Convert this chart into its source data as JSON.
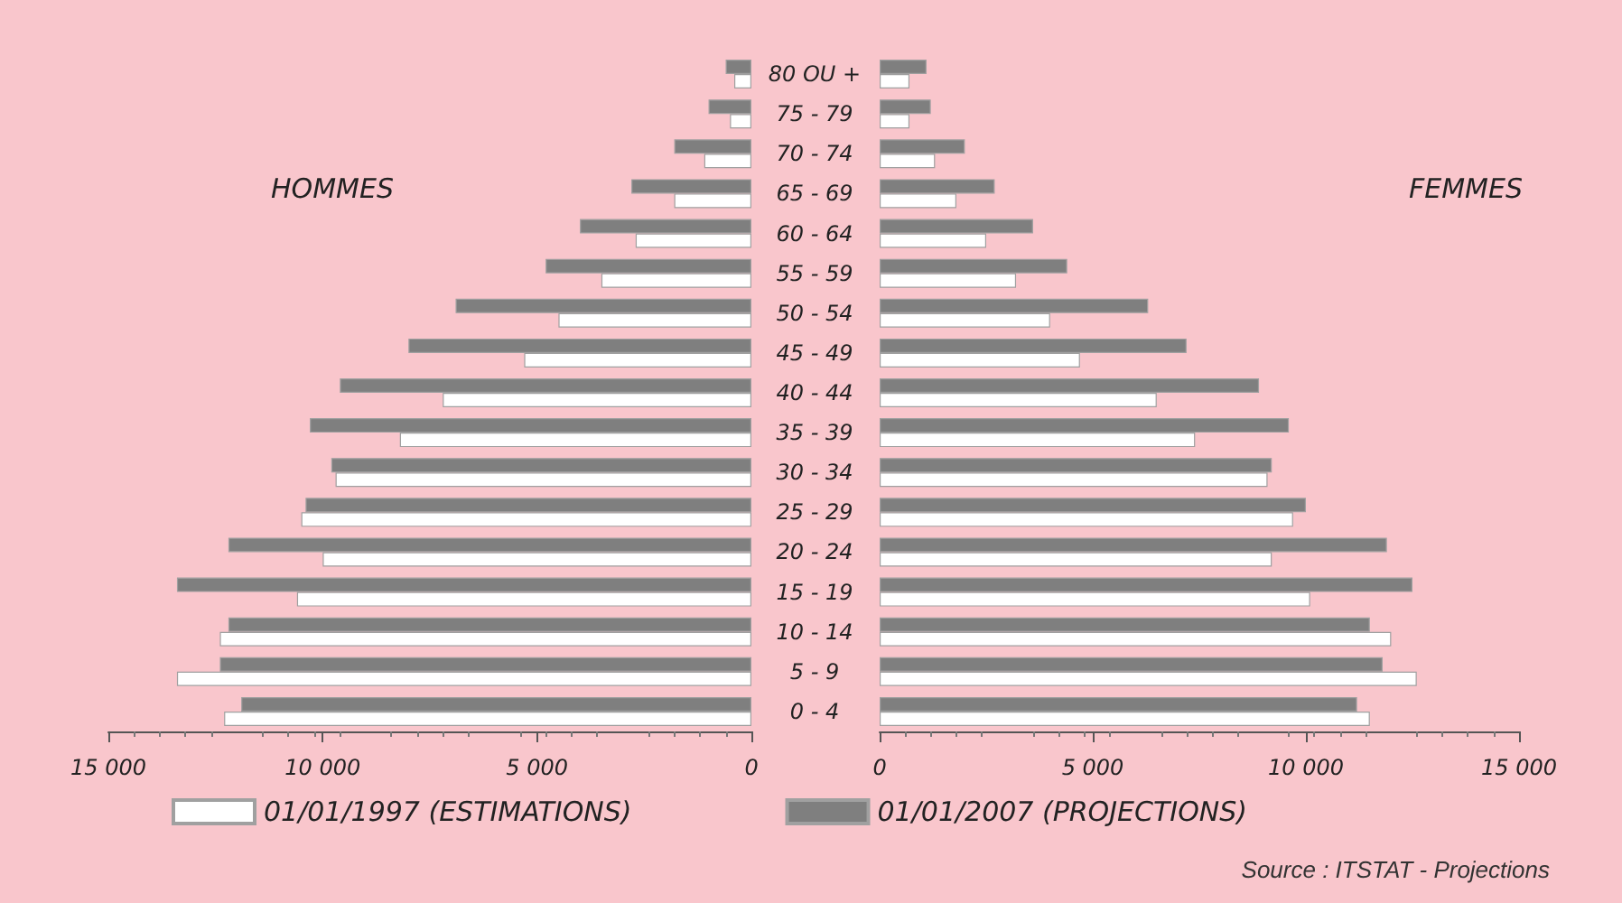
{
  "chart_data": [
    {
      "type": "bar",
      "orientation": "horizontal",
      "title": "HOMMES",
      "categories": [
        "80 OU +",
        "75 - 79",
        "70 - 74",
        "65 - 69",
        "60 - 64",
        "55 - 59",
        "50 - 54",
        "45 - 49",
        "40 - 44",
        "35 - 39",
        "30 - 34",
        "25 - 29",
        "20 - 24",
        "15 - 19",
        "10 - 14",
        "5 - 9",
        "0 - 4"
      ],
      "series": [
        {
          "name": "01/01/1997 (ESTIMATIONS)",
          "color": "#ffffff",
          "values": [
            400,
            500,
            1100,
            1800,
            2700,
            3500,
            4500,
            5300,
            7200,
            8200,
            9700,
            10500,
            10000,
            10600,
            12400,
            13400,
            12300
          ]
        },
        {
          "name": "01/01/2007 (PROJECTIONS)",
          "color": "#7f7f7f",
          "values": [
            600,
            1000,
            1800,
            2800,
            4000,
            4800,
            6900,
            8000,
            9600,
            10300,
            9800,
            10400,
            12200,
            13400,
            12200,
            12400,
            11900
          ]
        }
      ],
      "xlim": [
        15000,
        0
      ],
      "xticks": [
        {
          "value": 15000,
          "label": "15 000"
        },
        {
          "value": 10000,
          "label": "10 000"
        },
        {
          "value": 5000,
          "label": "5 000"
        },
        0
      ],
      "tick_labels": "x",
      "legend": "bottom",
      "grid": false
    },
    {
      "type": "bar",
      "orientation": "horizontal",
      "title": "FEMMES",
      "categories": [
        "80 OU +",
        "75 - 79",
        "70 - 74",
        "65 - 69",
        "60 - 64",
        "55 - 59",
        "50 - 54",
        "45 - 49",
        "40 - 44",
        "35 - 39",
        "30 - 34",
        "25 - 29",
        "20 - 24",
        "15 - 19",
        "10 - 14",
        "5 - 9",
        "0 - 4"
      ],
      "series": [
        {
          "color": "#ffffff",
          "values": [
            700,
            700,
            1300,
            1800,
            2500,
            3200,
            4000,
            4700,
            6500,
            7400,
            9100,
            9700,
            9200,
            10100,
            12000,
            12600,
            11500
          ]
        },
        {
          "color": "#7f7f7f",
          "values": [
            1100,
            1200,
            2000,
            2700,
            3600,
            4400,
            6300,
            7200,
            8900,
            9600,
            9200,
            10000,
            11900,
            12500,
            11500,
            11800,
            11200
          ]
        }
      ],
      "xlim": [
        0,
        15000
      ],
      "xticks": [
        0,
        {
          "value": 5000,
          "label": "5 000"
        },
        {
          "value": 10000,
          "label": "10 000"
        },
        {
          "value": 15000,
          "label": "15 000"
        }
      ],
      "grid": false,
      "annotations": [
        "Source : ITSTAT - Projections"
      ]
    }
  ]
}
